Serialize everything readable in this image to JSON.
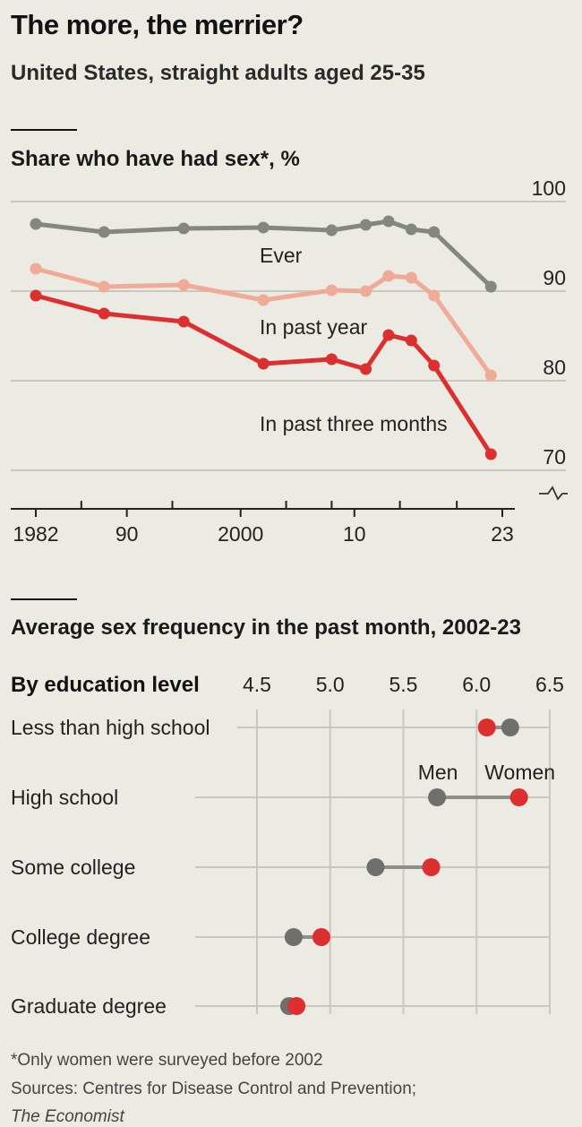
{
  "header": {
    "title": "The more, the merrier?",
    "subtitle": "United States, straight adults aged 25-35"
  },
  "colors": {
    "background": "#ebeae3",
    "grid": "#c9c8c0",
    "ever": "#848680",
    "past_year": "#efaa98",
    "past_three_months": "#dc2f2f",
    "men": "#6f6f6d",
    "women": "#dc2f2f",
    "connector": "#8d8d8a"
  },
  "footer": {
    "footnote": "*Only women were surveyed before 2002",
    "sources": "Sources: Centres for Disease Control and Prevention;",
    "sources_2": "The Economist"
  },
  "chart_data": [
    {
      "type": "line",
      "title": "Share who have had sex*, %",
      "x_tick_labels": [
        "1982",
        "90",
        "2000",
        "10",
        "23"
      ],
      "x_ticks": [
        1982,
        1990,
        2000,
        2010,
        2023
      ],
      "x_minor_ticks": [
        1986,
        1994,
        2004,
        2008,
        2014,
        2019
      ],
      "xlim": [
        1982,
        2023
      ],
      "ylim": [
        70,
        100
      ],
      "y_ticks": [
        70,
        80,
        90,
        100
      ],
      "y_axis_break": true,
      "grid": true,
      "series": [
        {
          "name": "Ever",
          "color": "#848680",
          "x": [
            1982,
            1988,
            1995,
            2002,
            2008,
            2011,
            2013,
            2015,
            2017,
            2022
          ],
          "values": [
            97.5,
            96.6,
            97.0,
            97.1,
            96.8,
            97.4,
            97.8,
            96.9,
            96.6,
            90.5
          ]
        },
        {
          "name": "In past year",
          "color": "#efaa98",
          "x": [
            1982,
            1988,
            1995,
            2002,
            2008,
            2011,
            2013,
            2015,
            2017,
            2022
          ],
          "values": [
            92.5,
            90.5,
            90.7,
            89.0,
            90.1,
            90.0,
            91.7,
            91.5,
            89.5,
            80.6
          ]
        },
        {
          "name": "In past three months",
          "color": "#dc2f2f",
          "x": [
            1982,
            1988,
            1995,
            2002,
            2008,
            2011,
            2013,
            2015,
            2017,
            2022
          ],
          "values": [
            89.5,
            87.5,
            86.6,
            81.9,
            82.4,
            81.3,
            85.1,
            84.5,
            81.7,
            71.8
          ]
        }
      ]
    },
    {
      "type": "dot_plot",
      "title": "Average sex frequency in the past month, 2002-23",
      "category_header": "By education level",
      "xlim": [
        4.5,
        6.5
      ],
      "x_tick_labels": [
        "4.5",
        "5.0",
        "5.5",
        "6.0",
        "6.5"
      ],
      "x_ticks": [
        4.5,
        5.0,
        5.5,
        6.0,
        6.5
      ],
      "grid": true,
      "categories": [
        "Less than high school",
        "High school",
        "Some college",
        "College degree",
        "Graduate degree"
      ],
      "series": [
        {
          "name": "Men",
          "color": "#6f6f6d",
          "values": [
            6.23,
            5.73,
            5.31,
            4.75,
            4.72
          ]
        },
        {
          "name": "Women",
          "color": "#dc2f2f",
          "values": [
            6.07,
            6.29,
            5.69,
            4.94,
            4.77
          ]
        }
      ],
      "legend_row": "High school"
    }
  ]
}
